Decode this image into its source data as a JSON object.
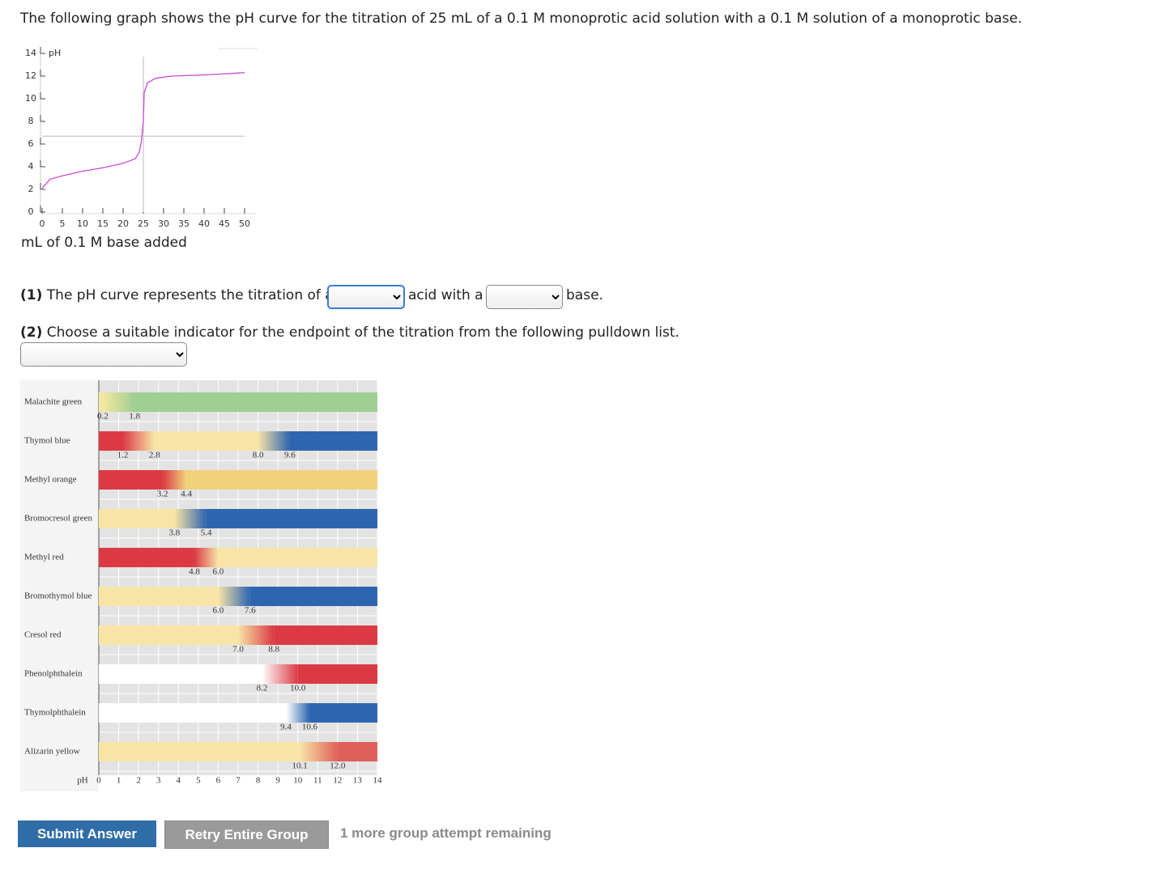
{
  "question": "The following graph shows the pH curve for the titration of 25 mL of a 0.1 M monoprotic acid solution with a 0.1 M solution of a monoprotic base.",
  "chart_data": {
    "type": "line",
    "y_label": "pH",
    "x_label": "mL of 0.1 M base added",
    "x": [
      0,
      2,
      5,
      10,
      15,
      20,
      23,
      24,
      24.5,
      25,
      25.2,
      26,
      28,
      32,
      40,
      50
    ],
    "values": [
      2.1,
      2.9,
      3.2,
      3.6,
      3.9,
      4.3,
      4.7,
      5.3,
      6.2,
      8.0,
      10.5,
      11.4,
      11.8,
      12.0,
      12.1,
      12.3
    ],
    "color": "#c94ad6",
    "xlim": [
      0,
      50
    ],
    "ylim": [
      0,
      14
    ],
    "xticks": [
      0,
      5,
      10,
      15,
      20,
      25,
      30,
      35,
      40,
      45,
      50
    ],
    "yticks": [
      0,
      2,
      4,
      6,
      8,
      10,
      12,
      14
    ],
    "reference_x": 25,
    "reference_y": 6.7
  },
  "question_1": {
    "before": "(1) The pH curve represents the titration of a",
    "middle": "acid with a",
    "after": "base.",
    "number": "(1)"
  },
  "question_2": {
    "text": "Choose a suitable indicator for the endpoint of the titration from the following pulldown list.",
    "number": "(2)"
  },
  "indicator_chart": {
    "type": "indicator-table",
    "axis_label": "pH",
    "xlim": [
      0,
      14
    ],
    "ticks": [
      0,
      1,
      2,
      3,
      4,
      5,
      6,
      7,
      8,
      9,
      10,
      11,
      12,
      13,
      14
    ],
    "items": [
      {
        "name": "Malachite green",
        "colors": [
          "#f5e6a0",
          "#9fcf92"
        ],
        "transitions": [
          [
            0.2,
            1.8
          ]
        ]
      },
      {
        "name": "Thymol blue",
        "colors": [
          "#db3a45",
          "#f8e4a6",
          "#2f65b0"
        ],
        "transitions": [
          [
            1.2,
            2.8
          ],
          [
            {
              "value": 8.0,
              "label": "8.0"
            },
            9.6
          ]
        ]
      },
      {
        "name": "Methyl orange",
        "colors": [
          "#db3a45",
          "#f0d27a"
        ],
        "transitions": [
          [
            3.2,
            4.4
          ]
        ]
      },
      {
        "name": "Bromocresol green",
        "colors": [
          "#f8e4a6",
          "#2f65b0"
        ],
        "transitions": [
          [
            3.8,
            5.4
          ]
        ]
      },
      {
        "name": "Methyl red",
        "colors": [
          "#db3a45",
          "#f8e4a6"
        ],
        "transitions": [
          [
            4.8,
            {
              "value": 6.0,
              "label": "6.0"
            }
          ]
        ]
      },
      {
        "name": "Bromothymol blue",
        "colors": [
          "#f8e4a6",
          "#2f65b0"
        ],
        "transitions": [
          [
            {
              "value": 6.0,
              "label": "6.0"
            },
            7.6
          ]
        ]
      },
      {
        "name": "Cresol red",
        "colors": [
          "#f8e4a6",
          "#db3a45"
        ],
        "transitions": [
          [
            {
              "value": 7.0,
              "label": "7.0"
            },
            8.8
          ]
        ]
      },
      {
        "name": "Phenolphthalein",
        "colors": [
          "#ffffff",
          "#db3a45"
        ],
        "transitions": [
          [
            8.2,
            {
              "value": 10.0,
              "label": "10.0"
            }
          ]
        ]
      },
      {
        "name": "Thymolphthalein",
        "colors": [
          "#ffffff",
          "#2f65b0"
        ],
        "transitions": [
          [
            9.4,
            10.6
          ]
        ]
      },
      {
        "name": "Alizarin yellow",
        "colors": [
          "#f8e4a6",
          "#e0605a"
        ],
        "transitions": [
          [
            10.1,
            {
              "value": 12.0,
              "label": "12.0"
            }
          ]
        ]
      }
    ]
  },
  "buttons": {
    "submit": "Submit Answer",
    "retry": "Retry Entire Group",
    "attempts": "1 more group attempt remaining"
  }
}
